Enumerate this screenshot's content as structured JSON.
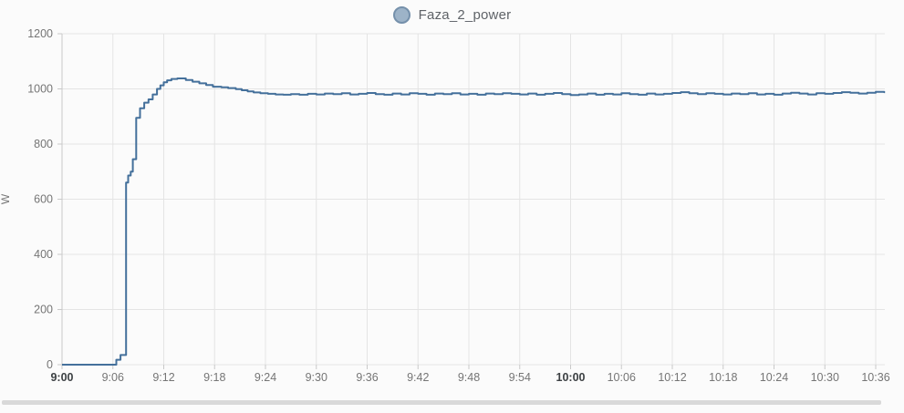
{
  "legend": {
    "label": "Faza_2_power"
  },
  "colors": {
    "line": "#44709b",
    "legend_fill": "#9db3c8",
    "legend_stroke": "#7590ab",
    "grid": "#e4e4e4",
    "axis": "#c9c9c9",
    "tick_label": "#757575",
    "tick_label_bold": "#3c4043",
    "background": "#fbfbfb",
    "scrollbar": "#d9d9d9"
  },
  "chart_data": {
    "type": "line",
    "step": true,
    "title": "Faza_2_power",
    "xlabel": "",
    "ylabel": "W",
    "ylim": [
      0,
      1200
    ],
    "y_ticks": [
      0,
      200,
      400,
      600,
      800,
      1000,
      1200
    ],
    "x_ticks": [
      {
        "minute": 0,
        "label": "9:00",
        "bold": true
      },
      {
        "minute": 6,
        "label": "9:06",
        "bold": false
      },
      {
        "minute": 12,
        "label": "9:12",
        "bold": false
      },
      {
        "minute": 18,
        "label": "9:18",
        "bold": false
      },
      {
        "minute": 24,
        "label": "9:24",
        "bold": false
      },
      {
        "minute": 30,
        "label": "9:30",
        "bold": false
      },
      {
        "minute": 36,
        "label": "9:36",
        "bold": false
      },
      {
        "minute": 42,
        "label": "9:42",
        "bold": false
      },
      {
        "minute": 48,
        "label": "9:48",
        "bold": false
      },
      {
        "minute": 54,
        "label": "9:54",
        "bold": false
      },
      {
        "minute": 60,
        "label": "10:00",
        "bold": true
      },
      {
        "minute": 66,
        "label": "10:06",
        "bold": false
      },
      {
        "minute": 72,
        "label": "10:12",
        "bold": false
      },
      {
        "minute": 78,
        "label": "10:18",
        "bold": false
      },
      {
        "minute": 84,
        "label": "10:24",
        "bold": false
      },
      {
        "minute": 90,
        "label": "10:30",
        "bold": false
      },
      {
        "minute": 96,
        "label": "10:36",
        "bold": false
      }
    ],
    "x_axis_start_label": "9:00",
    "x_range_minutes": [
      0,
      97.1
    ],
    "grid": true,
    "legend_position": "top-center",
    "series": [
      {
        "name": "Faza_2_power",
        "unit": "W",
        "points": [
          [
            0,
            0
          ],
          [
            6.4,
            18
          ],
          [
            6.9,
            35
          ],
          [
            7.55,
            660
          ],
          [
            7.8,
            686
          ],
          [
            8.1,
            700
          ],
          [
            8.35,
            745
          ],
          [
            8.75,
            895
          ],
          [
            9.2,
            930
          ],
          [
            9.7,
            950
          ],
          [
            10.2,
            962
          ],
          [
            10.7,
            980
          ],
          [
            11.2,
            1000
          ],
          [
            11.6,
            1013
          ],
          [
            12.0,
            1024
          ],
          [
            12.4,
            1031
          ],
          [
            12.9,
            1036
          ],
          [
            13.6,
            1038
          ],
          [
            14.6,
            1032
          ],
          [
            15.4,
            1026
          ],
          [
            16.2,
            1020
          ],
          [
            17.0,
            1014
          ],
          [
            17.8,
            1008
          ],
          [
            18.8,
            1006
          ],
          [
            19.6,
            1003
          ],
          [
            20.5,
            999
          ],
          [
            21.2,
            995
          ],
          [
            21.9,
            991
          ],
          [
            22.6,
            987
          ],
          [
            23.4,
            984
          ],
          [
            24.3,
            982
          ],
          [
            25.2,
            980
          ],
          [
            26.1,
            979
          ],
          [
            27,
            981
          ],
          [
            28,
            979
          ],
          [
            29,
            982
          ],
          [
            30,
            980
          ],
          [
            31,
            983
          ],
          [
            32,
            981
          ],
          [
            33,
            984
          ],
          [
            34,
            980
          ],
          [
            35,
            982
          ],
          [
            36,
            985
          ],
          [
            37,
            981
          ],
          [
            38,
            979
          ],
          [
            39,
            983
          ],
          [
            40,
            980
          ],
          [
            41,
            984
          ],
          [
            42,
            982
          ],
          [
            43,
            979
          ],
          [
            44,
            983
          ],
          [
            45,
            981
          ],
          [
            46,
            984
          ],
          [
            47,
            980
          ],
          [
            48,
            982
          ],
          [
            49,
            979
          ],
          [
            50,
            983
          ],
          [
            51,
            981
          ],
          [
            52,
            984
          ],
          [
            53,
            982
          ],
          [
            54,
            980
          ],
          [
            55,
            983
          ],
          [
            56,
            979
          ],
          [
            57,
            982
          ],
          [
            58,
            985
          ],
          [
            59,
            981
          ],
          [
            60,
            978
          ],
          [
            61,
            980
          ],
          [
            62,
            983
          ],
          [
            63,
            979
          ],
          [
            64,
            982
          ],
          [
            65,
            980
          ],
          [
            66,
            984
          ],
          [
            67,
            981
          ],
          [
            68,
            979
          ],
          [
            69,
            983
          ],
          [
            70,
            980
          ],
          [
            71,
            982
          ],
          [
            72,
            985
          ],
          [
            73,
            988
          ],
          [
            74,
            984
          ],
          [
            75,
            981
          ],
          [
            76,
            984
          ],
          [
            77,
            982
          ],
          [
            78,
            980
          ],
          [
            79,
            983
          ],
          [
            80,
            981
          ],
          [
            81,
            984
          ],
          [
            82,
            980
          ],
          [
            83,
            982
          ],
          [
            84,
            979
          ],
          [
            85,
            983
          ],
          [
            86,
            986
          ],
          [
            87,
            983
          ],
          [
            88,
            980
          ],
          [
            89,
            984
          ],
          [
            90,
            982
          ],
          [
            91,
            985
          ],
          [
            92,
            988
          ],
          [
            93,
            986
          ],
          [
            94,
            983
          ],
          [
            95,
            986
          ],
          [
            96,
            989
          ],
          [
            97,
            988
          ]
        ]
      }
    ]
  }
}
